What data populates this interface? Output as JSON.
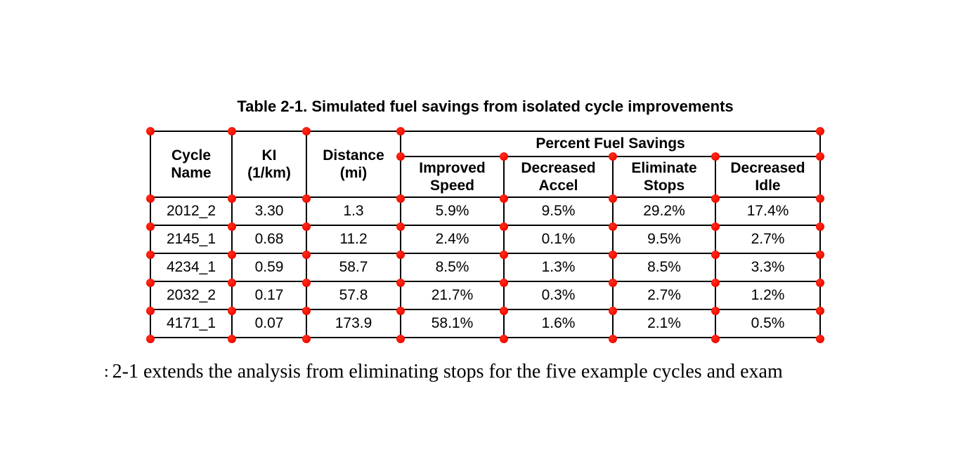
{
  "page": {
    "background": "#ffffff"
  },
  "title": "Table 2-1. Simulated fuel savings from isolated cycle improvements",
  "table": {
    "header": {
      "cycle_name": "Cycle\nName",
      "ki": "KI\n(1/km)",
      "distance": "Distance\n(mi)",
      "group": "Percent Fuel Savings",
      "sub": [
        "Improved\nSpeed",
        "Decreased\nAccel",
        "Eliminate\nStops",
        "Decreased\nIdle"
      ]
    },
    "rows": [
      [
        "2012_2",
        "3.30",
        "1.3",
        "5.9%",
        "9.5%",
        "29.2%",
        "17.4%"
      ],
      [
        "2145_1",
        "0.68",
        "11.2",
        "2.4%",
        "0.1%",
        "9.5%",
        "2.7%"
      ],
      [
        "4234_1",
        "0.59",
        "58.7",
        "8.5%",
        "1.3%",
        "8.5%",
        "3.3%"
      ],
      [
        "2032_2",
        "0.17",
        "57.8",
        "21.7%",
        "0.3%",
        "2.7%",
        "1.2%"
      ],
      [
        "4171_1",
        "0.07",
        "173.9",
        "58.1%",
        "1.6%",
        "2.1%",
        "0.5%"
      ]
    ]
  },
  "annotations": {
    "dot_color": "#f40d00"
  },
  "body_text": {
    "leading_fragment": ":",
    "text": "2-1 extends the analysis from eliminating stops for the five example cycles and exam"
  }
}
